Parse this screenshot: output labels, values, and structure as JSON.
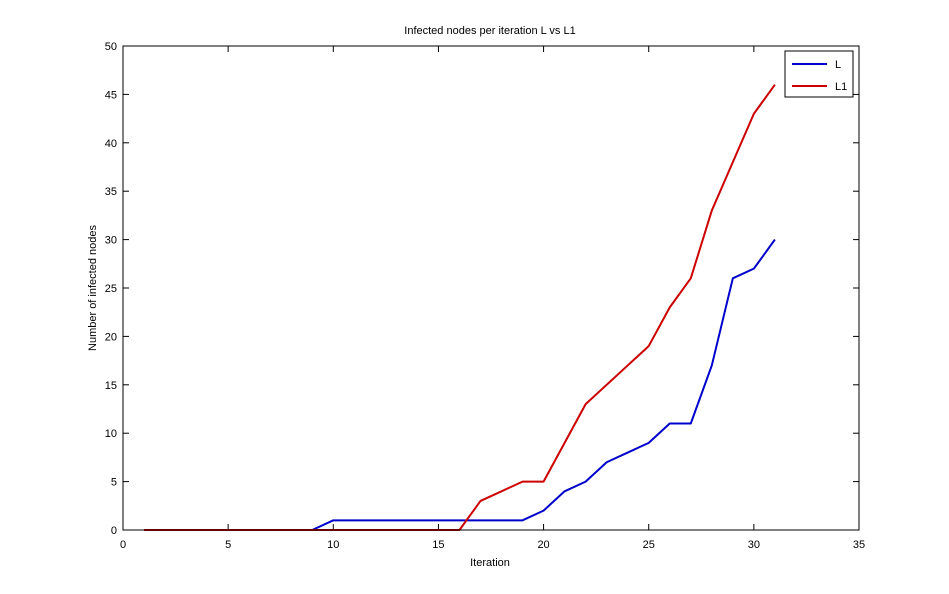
{
  "chart_data": {
    "type": "line",
    "title": "Infected nodes per iteration L vs L1",
    "xlabel": "Iteration",
    "ylabel": "Number of infected nodes",
    "xlim": [
      0,
      35
    ],
    "ylim": [
      0,
      50
    ],
    "xticks": [
      0,
      5,
      10,
      15,
      20,
      25,
      30,
      35
    ],
    "yticks": [
      0,
      5,
      10,
      15,
      20,
      25,
      30,
      35,
      40,
      45,
      50
    ],
    "grid": false,
    "legend_position": "top-right",
    "x": [
      1,
      2,
      3,
      4,
      5,
      6,
      7,
      8,
      9,
      10,
      11,
      12,
      13,
      14,
      15,
      16,
      17,
      18,
      19,
      20,
      21,
      22,
      23,
      24,
      25,
      26,
      27,
      28,
      29,
      30,
      31
    ],
    "series": [
      {
        "name": "L",
        "color": "#0000cc",
        "values": [
          0,
          0,
          0,
          0,
          0,
          0,
          0,
          0,
          0,
          1,
          1,
          1,
          1,
          1,
          1,
          1,
          1,
          1,
          1,
          2,
          4,
          5,
          7,
          8,
          9,
          11,
          11,
          17,
          26,
          27,
          30
        ]
      },
      {
        "name": "L1",
        "color": "#cc0000",
        "values": [
          0,
          0,
          0,
          0,
          0,
          0,
          0,
          0,
          0,
          0,
          0,
          0,
          0,
          0,
          0,
          0,
          3,
          4,
          5,
          5,
          9,
          13,
          15,
          17,
          19,
          23,
          26,
          33,
          38,
          43,
          46
        ]
      }
    ]
  }
}
